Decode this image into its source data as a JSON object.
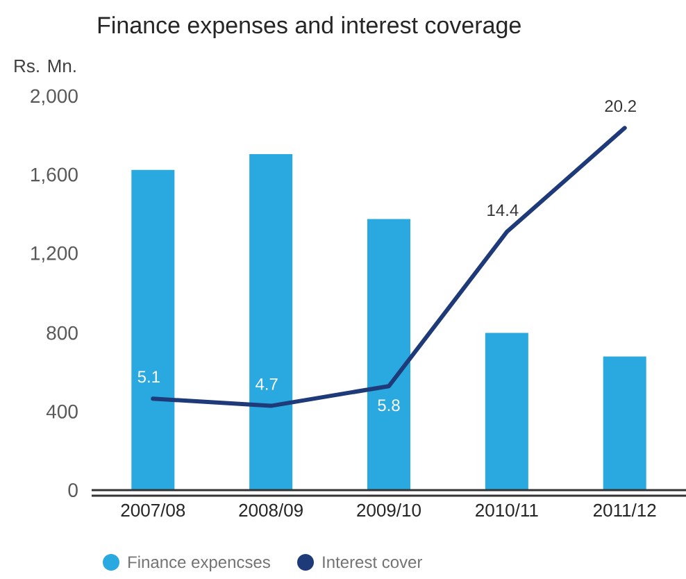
{
  "chart_data": {
    "type": "bar",
    "title": "Finance expenses and interest coverage",
    "ylabel": "Rs. Mn.",
    "categories": [
      "2007/08",
      "2008/09",
      "2009/10",
      "2010/11",
      "2011/12"
    ],
    "series": [
      {
        "name": "Finance expencses",
        "color": "#29a9e0",
        "values": [
          1630,
          1710,
          1380,
          800,
          680
        ]
      },
      {
        "name": "Interest  cover",
        "type": "line",
        "axis": "y2",
        "color": "#1f3a78",
        "values": [
          5.1,
          4.7,
          5.8,
          14.4,
          20.2
        ],
        "value_labels": [
          "5.1",
          "4.7",
          "5.8",
          "14.4",
          "20.2"
        ]
      }
    ],
    "ylim": [
      0,
      2000
    ],
    "yticks": [
      {
        "value": 0,
        "label": "0"
      },
      {
        "value": 400,
        "label": "400"
      },
      {
        "value": 800,
        "label": "800"
      },
      {
        "value": 1200,
        "label": "1,200"
      },
      {
        "value": 1600,
        "label": "1,600"
      },
      {
        "value": 2000,
        "label": "2,000"
      }
    ],
    "legend": "bottom",
    "grid": false
  }
}
